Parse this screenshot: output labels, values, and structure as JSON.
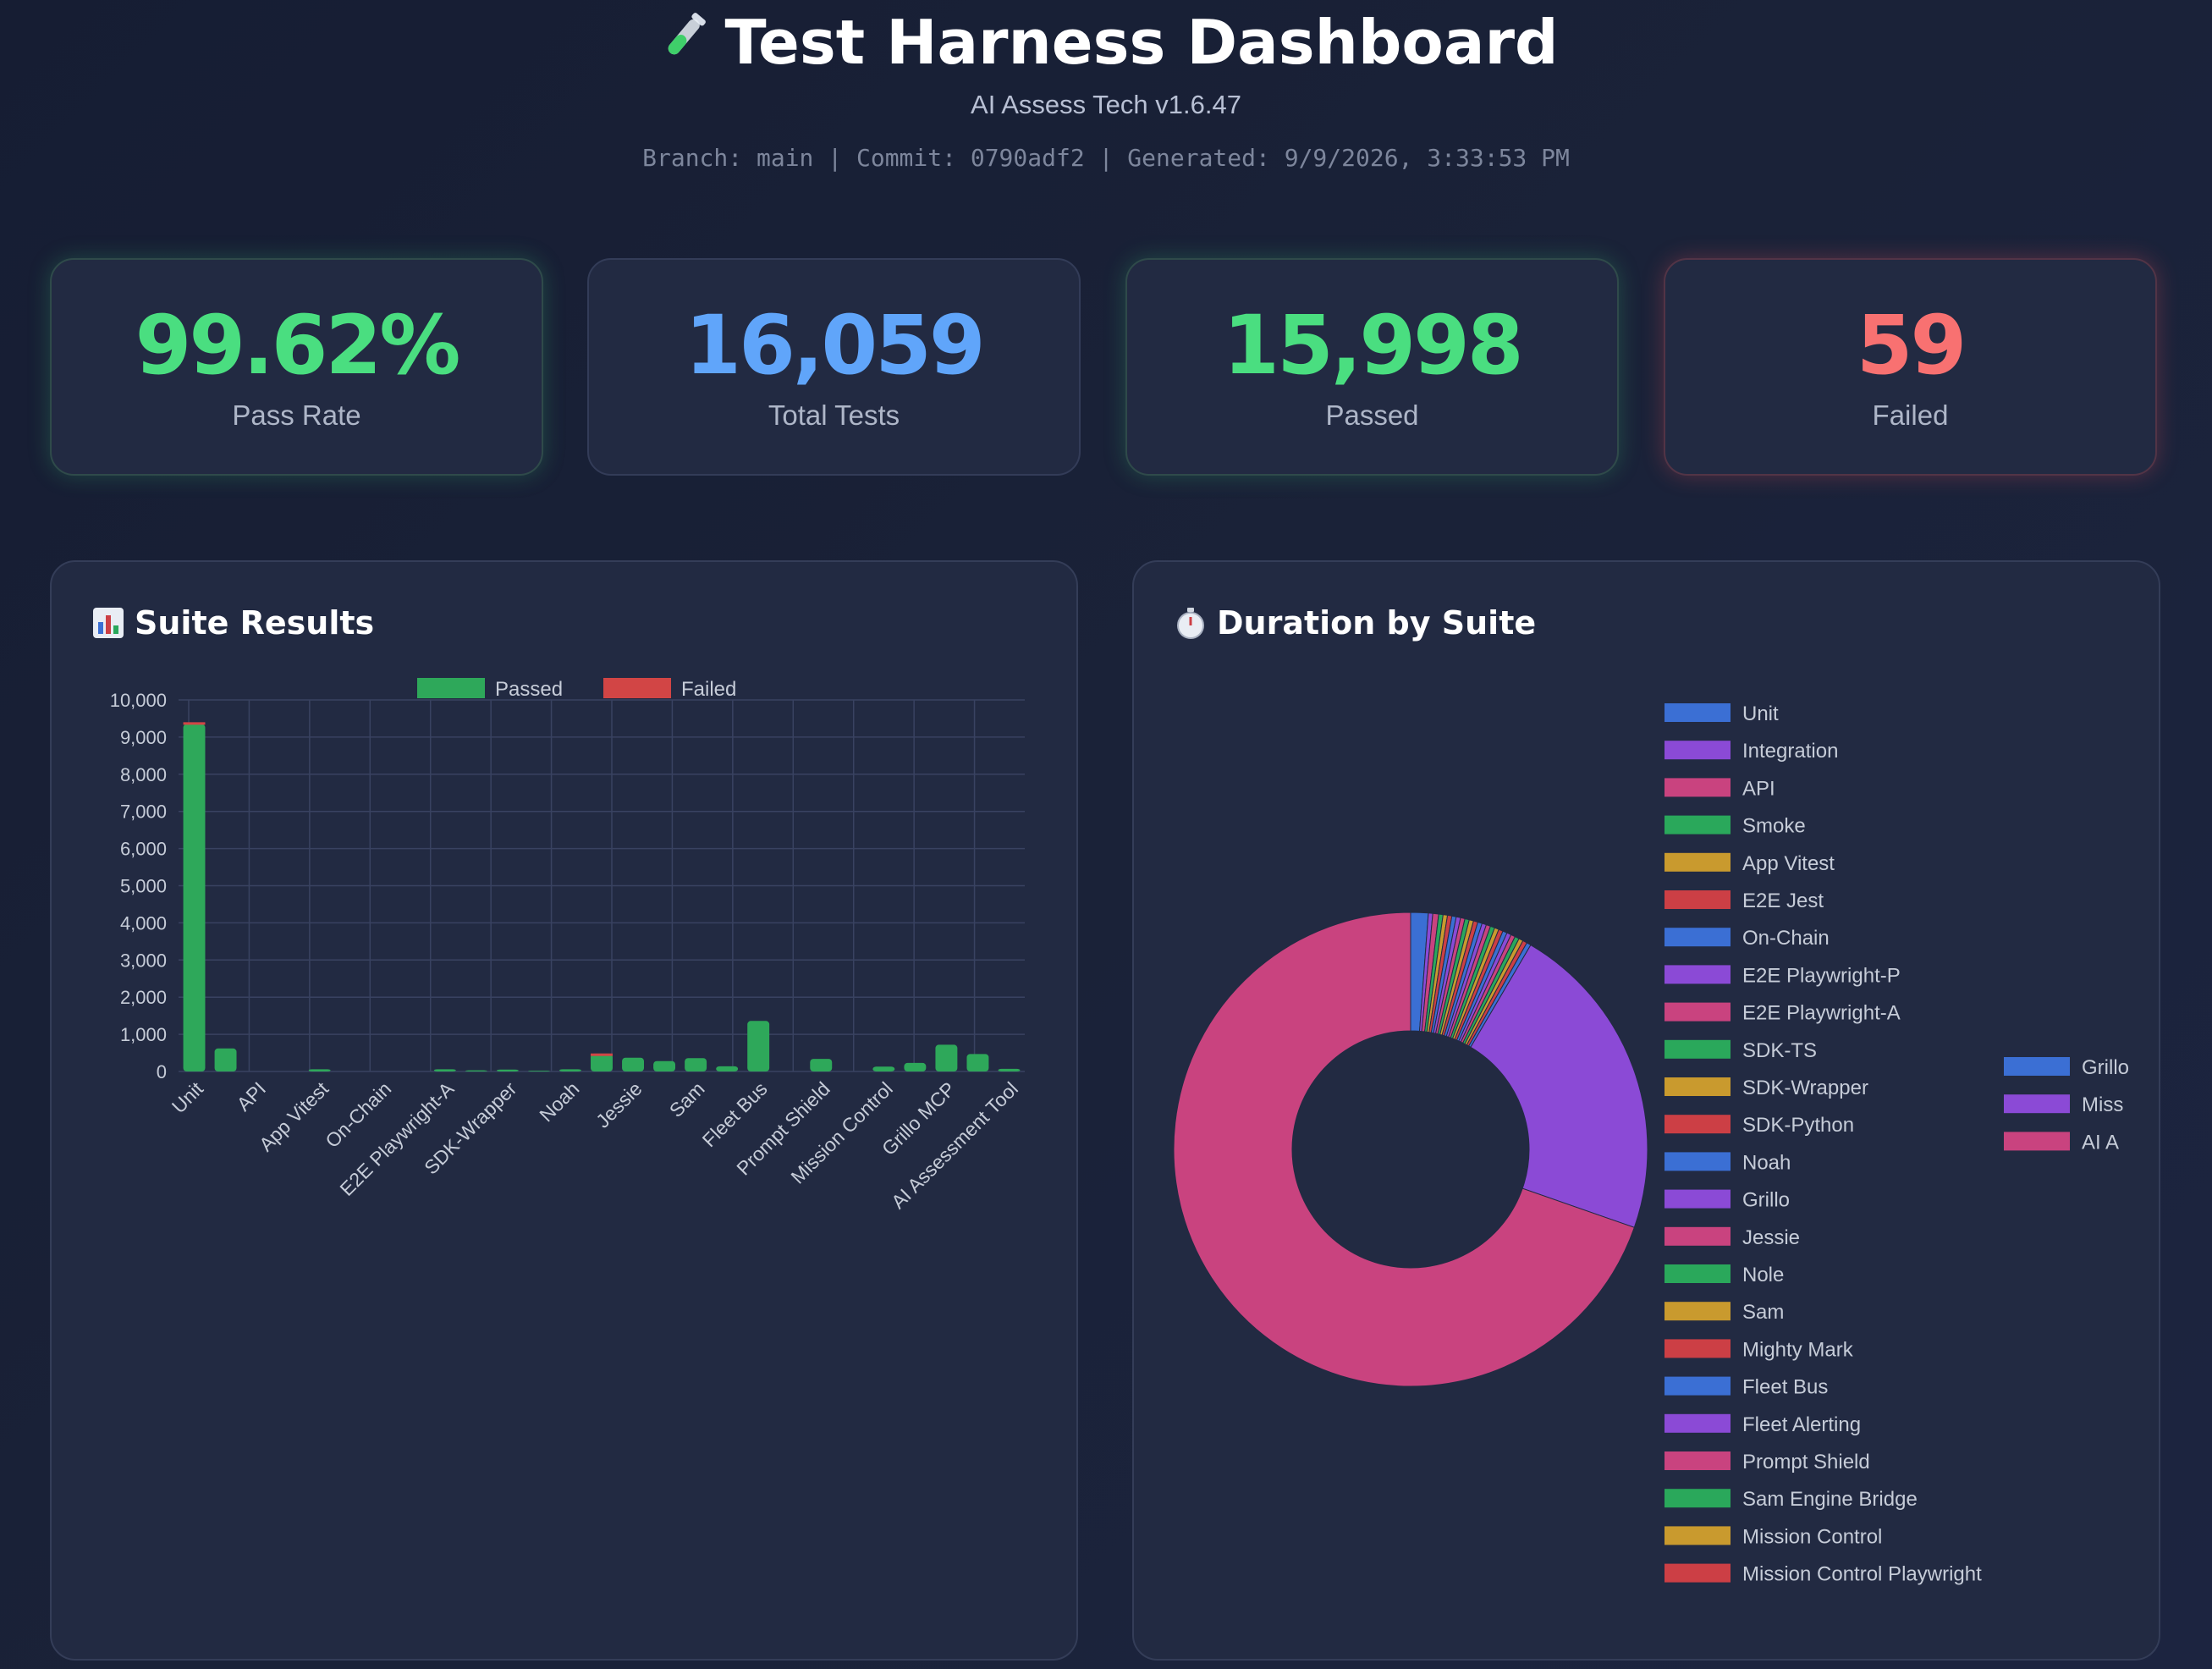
{
  "header": {
    "title": "Test Harness Dashboard",
    "subtitle": "AI Assess Tech v1.6.47",
    "meta": "Branch: main | Commit: 0790adf2 | Generated: 9/9/2026, 3:33:53 PM"
  },
  "cards": [
    {
      "value": "99.62%",
      "label": "Pass Rate",
      "color": "#4ade80"
    },
    {
      "value": "16,059",
      "label": "Total Tests",
      "color": "#60a5fa"
    },
    {
      "value": "15,998",
      "label": "Passed",
      "color": "#4ade80"
    },
    {
      "value": "59",
      "label": "Failed",
      "color": "#f87171"
    }
  ],
  "panels": {
    "suite_results": {
      "title": "Suite Results",
      "icon": "bar-chart-icon"
    },
    "duration": {
      "title": "Duration by Suite",
      "icon": "stopwatch-icon"
    }
  },
  "chart_data": [
    {
      "type": "bar",
      "stacked": true,
      "legend": [
        "Passed",
        "Failed"
      ],
      "legend_placement": "top",
      "colors": {
        "Passed": "#2ea85a",
        "Failed": "#d24545"
      },
      "categories": [
        "Unit",
        "Integration",
        "API",
        "Smoke",
        "App Vitest",
        "E2E Jest",
        "On-Chain",
        "E2E Playwright-P",
        "E2E Playwright-A",
        "SDK-TS",
        "SDK-Wrapper",
        "SDK-Python",
        "Noah",
        "Grillo",
        "Jessie",
        "Nole",
        "Sam",
        "Mighty Mark",
        "Fleet Bus",
        "Fleet Alerting",
        "Prompt Shield",
        "Sam Engine Bridge",
        "Mission Control",
        "Mission Control Playwright",
        "Grillo MCP",
        "Mission Assess",
        "AI Assessment Tool"
      ],
      "tick_labels": [
        "Unit",
        "API",
        "App Vitest",
        "On-Chain",
        "E2E Playwright-A",
        "SDK-Wrapper",
        "Noah",
        "Jessie",
        "Sam",
        "Fleet Bus",
        "Prompt Shield",
        "Mission Control",
        "Grillo MCP",
        "AI Assessment Tool"
      ],
      "series": [
        {
          "name": "Passed",
          "values": [
            9350,
            620,
            0,
            0,
            60,
            0,
            0,
            0,
            60,
            30,
            50,
            20,
            60,
            480,
            370,
            280,
            360,
            140,
            1360,
            0,
            340,
            0,
            130,
            230,
            720,
            470,
            70
          ]
        },
        {
          "name": "Failed",
          "values": [
            50,
            0,
            0,
            0,
            0,
            0,
            0,
            0,
            0,
            0,
            0,
            0,
            0,
            5,
            0,
            0,
            0,
            0,
            0,
            0,
            0,
            0,
            0,
            0,
            0,
            0,
            0
          ]
        }
      ],
      "ylim": [
        0,
        10000
      ],
      "yticks": [
        "10,000",
        "9,000",
        "8,000",
        "7,000",
        "6,000",
        "5,000",
        "4,000",
        "3,000",
        "2,000",
        "1,000",
        "0"
      ],
      "grid": true
    },
    {
      "type": "pie",
      "donut": true,
      "legend_placement": "right",
      "labels": [
        "Unit",
        "Integration",
        "API",
        "Smoke",
        "App Vitest",
        "E2E Jest",
        "On-Chain",
        "E2E Playwright-P",
        "E2E Playwright-A",
        "SDK-TS",
        "SDK-Wrapper",
        "SDK-Python",
        "Noah",
        "Grillo",
        "Jessie",
        "Nole",
        "Sam",
        "Mighty Mark",
        "Fleet Bus",
        "Fleet Alerting",
        "Prompt Shield",
        "Sam Engine Bridge",
        "Mission Control",
        "Mission Control Playwright",
        "Grillo",
        "Miss",
        "AI A"
      ],
      "colors": [
        "#3b6fd4",
        "#8b4ad6",
        "#c9437f",
        "#2aa85b",
        "#c99a2e",
        "#cc3f45",
        "#3b6fd4",
        "#8b4ad6",
        "#c9437f",
        "#2aa85b",
        "#c99a2e",
        "#cc3f45",
        "#3b6fd4",
        "#8b4ad6",
        "#c9437f",
        "#2aa85b",
        "#c99a2e",
        "#cc3f45",
        "#3b6fd4",
        "#8b4ad6",
        "#c9437f",
        "#2aa85b",
        "#c99a2e",
        "#cc3f45",
        "#3b6fd4",
        "#8b4ad6",
        "#c9437f"
      ],
      "values": [
        1.2,
        0.3,
        0.4,
        0.3,
        0.3,
        0.3,
        0.3,
        0.3,
        0.3,
        0.3,
        0.3,
        0.3,
        0.3,
        0.3,
        0.3,
        0.3,
        0.3,
        0.3,
        0.3,
        0.3,
        0.3,
        0.3,
        0.3,
        0.3,
        0.3,
        22,
        70
      ]
    }
  ]
}
